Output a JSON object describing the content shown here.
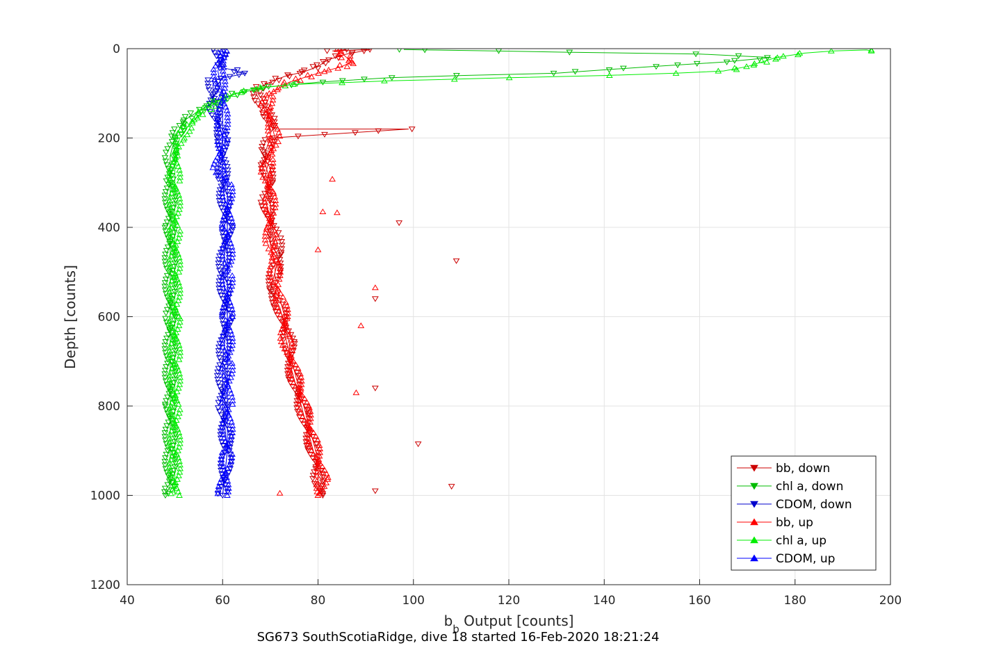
{
  "chart_data": {
    "type": "line",
    "xlabel_main": "b",
    "xlabel_sub": "b",
    "xlabel_rest": " Output [counts]",
    "ylabel": "Depth [counts]",
    "caption": "SG673 SouthScotiaRidge, dive 18 started 16-Feb-2020 18:21:24",
    "xlim": [
      40,
      200
    ],
    "ylim": [
      0,
      1200
    ],
    "y_reversed": true,
    "grid": true,
    "legend_position": "bottom-right",
    "x_ticks": [
      "40",
      "60",
      "80",
      "100",
      "120",
      "140",
      "160",
      "180",
      "200"
    ],
    "y_ticks": [
      "0",
      "200",
      "400",
      "600",
      "800",
      "1000",
      "1200"
    ],
    "series": [
      {
        "name": "bb, down",
        "color": "#cc0000",
        "marker": "triangle-down",
        "points": [
          [
            86,
            2
          ],
          [
            83,
            5
          ],
          [
            91,
            2
          ],
          [
            86,
            12
          ],
          [
            82,
            25
          ],
          [
            80,
            40
          ],
          [
            77,
            52
          ],
          [
            73,
            62
          ],
          [
            70,
            75
          ],
          [
            68,
            85
          ],
          [
            67,
            100
          ],
          [
            68,
            120
          ],
          [
            69,
            140
          ],
          [
            70,
            160
          ],
          [
            71,
            180
          ],
          [
            99,
            180
          ],
          [
            70,
            200
          ],
          [
            69,
            230
          ],
          [
            69,
            260
          ],
          [
            70,
            300
          ],
          [
            69,
            340
          ],
          [
            70,
            380
          ],
          [
            71,
            420
          ],
          [
            72,
            460
          ],
          [
            71,
            500
          ],
          [
            70,
            540
          ],
          [
            72,
            580
          ],
          [
            73,
            620
          ],
          [
            74,
            660
          ],
          [
            74,
            700
          ],
          [
            75,
            740
          ],
          [
            76,
            780
          ],
          [
            77,
            820
          ],
          [
            78,
            860
          ],
          [
            79,
            900
          ],
          [
            80,
            940
          ],
          [
            80,
            970
          ],
          [
            81,
            1000
          ]
        ]
      },
      {
        "name": "chl a, down",
        "color": "#00bb00",
        "marker": "triangle-down",
        "points": [
          [
            98,
            2
          ],
          [
            103,
            3
          ],
          [
            117,
            5
          ],
          [
            132,
            8
          ],
          [
            160,
            12
          ],
          [
            175,
            20
          ],
          [
            165,
            30
          ],
          [
            150,
            40
          ],
          [
            130,
            55
          ],
          [
            110,
            60
          ],
          [
            95,
            65
          ],
          [
            80,
            75
          ],
          [
            70,
            85
          ],
          [
            63,
            100
          ],
          [
            58,
            120
          ],
          [
            55,
            140
          ],
          [
            52,
            160
          ],
          [
            51,
            180
          ],
          [
            50,
            200
          ],
          [
            49,
            240
          ],
          [
            49,
            300
          ],
          [
            49,
            400
          ],
          [
            49,
            500
          ],
          [
            49,
            600
          ],
          [
            49,
            700
          ],
          [
            49,
            800
          ],
          [
            49,
            900
          ],
          [
            49,
            980
          ],
          [
            48,
            1000
          ]
        ]
      },
      {
        "name": "CDOM, down",
        "color": "#0000cc",
        "marker": "triangle-down",
        "points": [
          [
            59,
            2
          ],
          [
            60,
            20
          ],
          [
            59,
            40
          ],
          [
            65,
            55
          ],
          [
            58,
            70
          ],
          [
            58,
            100
          ],
          [
            58,
            130
          ],
          [
            59,
            160
          ],
          [
            60,
            200
          ],
          [
            60,
            300
          ],
          [
            61,
            400
          ],
          [
            60,
            500
          ],
          [
            61,
            600
          ],
          [
            60,
            700
          ],
          [
            60,
            800
          ],
          [
            61,
            900
          ],
          [
            60,
            1000
          ]
        ]
      },
      {
        "name": "bb, up",
        "color": "#ff0000",
        "marker": "triangle-up",
        "points": [
          [
            80,
            1000
          ],
          [
            81,
            960
          ],
          [
            80,
            920
          ],
          [
            79,
            880
          ],
          [
            78,
            840
          ],
          [
            77,
            800
          ],
          [
            76,
            760
          ],
          [
            75,
            720
          ],
          [
            74,
            680
          ],
          [
            73,
            640
          ],
          [
            73,
            600
          ],
          [
            72,
            560
          ],
          [
            71,
            520
          ],
          [
            71,
            480
          ],
          [
            70,
            440
          ],
          [
            70,
            400
          ],
          [
            70,
            360
          ],
          [
            70,
            320
          ],
          [
            69,
            280
          ],
          [
            70,
            240
          ],
          [
            71,
            200
          ],
          [
            70,
            160
          ],
          [
            69,
            130
          ],
          [
            70,
            100
          ],
          [
            74,
            75
          ],
          [
            80,
            55
          ],
          [
            85,
            40
          ],
          [
            87,
            30
          ],
          [
            86,
            20
          ],
          [
            85,
            10
          ],
          [
            84,
            2
          ]
        ]
      },
      {
        "name": "chl a, up",
        "color": "#00ee00",
        "marker": "triangle-up",
        "points": [
          [
            50,
            1000
          ],
          [
            50,
            900
          ],
          [
            50,
            800
          ],
          [
            50,
            700
          ],
          [
            50,
            600
          ],
          [
            50,
            500
          ],
          [
            50,
            400
          ],
          [
            50,
            300
          ],
          [
            50,
            240
          ],
          [
            51,
            200
          ],
          [
            53,
            170
          ],
          [
            56,
            140
          ],
          [
            60,
            110
          ],
          [
            66,
            90
          ],
          [
            75,
            80
          ],
          [
            95,
            72
          ],
          [
            120,
            65
          ],
          [
            140,
            60
          ],
          [
            155,
            55
          ],
          [
            165,
            50
          ],
          [
            170,
            40
          ],
          [
            173,
            30
          ],
          [
            176,
            20
          ],
          [
            182,
            10
          ],
          [
            188,
            5
          ],
          [
            195,
            3
          ],
          [
            196,
            5
          ]
        ]
      },
      {
        "name": "CDOM, up",
        "color": "#0000ff",
        "marker": "triangle-up",
        "points": [
          [
            60,
            1000
          ],
          [
            61,
            900
          ],
          [
            61,
            800
          ],
          [
            61,
            700
          ],
          [
            61,
            600
          ],
          [
            61,
            500
          ],
          [
            61,
            400
          ],
          [
            61,
            300
          ],
          [
            59,
            270
          ],
          [
            60,
            200
          ],
          [
            60,
            150
          ],
          [
            60,
            100
          ],
          [
            59,
            50
          ],
          [
            60,
            20
          ],
          [
            60,
            2
          ]
        ]
      }
    ],
    "scatter_noise": {
      "bb, down": [
        [
          92,
          990
        ],
        [
          108,
          980
        ],
        [
          101,
          885
        ],
        [
          92,
          760
        ],
        [
          92,
          560
        ],
        [
          109,
          475
        ],
        [
          97,
          390
        ]
      ],
      "bb, up": [
        [
          92,
          535
        ],
        [
          89,
          620
        ],
        [
          88,
          770
        ],
        [
          83,
          292
        ],
        [
          81,
          365
        ],
        [
          84,
          367
        ],
        [
          80,
          450
        ],
        [
          72,
          995
        ]
      ]
    }
  }
}
